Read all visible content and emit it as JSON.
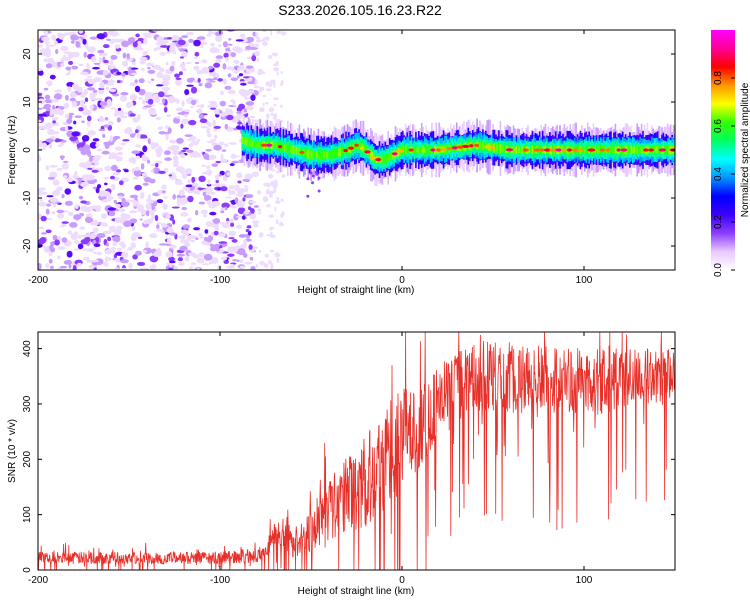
{
  "figure_title": "S233.2026.105.16.23.R22",
  "chart_data": [
    {
      "type": "heatmap",
      "title": "",
      "xlabel": "Height of straight line (km)",
      "ylabel": "Frequency (Hz)",
      "xlim": [
        -200,
        150
      ],
      "ylim": [
        -25,
        25
      ],
      "x_ticks": [
        -200,
        -100,
        0,
        100
      ],
      "y_ticks": [
        -20,
        -10,
        0,
        10,
        20
      ],
      "colorbar": {
        "label": "Normalized spectral amplitude",
        "range": [
          0,
          1
        ],
        "ticks": [
          0.0,
          0.2,
          0.4,
          0.6,
          0.8
        ],
        "colors": [
          "#ffffff",
          "#e8c8ff",
          "#8c3cff",
          "#3c00ff",
          "#0000ff",
          "#0096ff",
          "#00ffff",
          "#00ff64",
          "#32ff00",
          "#ffff00",
          "#ff9600",
          "#ff0000",
          "#ff0096",
          "#ff00ff"
        ]
      },
      "regions": [
        {
          "name": "noise",
          "x_range": [
            -200,
            -80
          ],
          "freq_range": [
            -25,
            25
          ],
          "amplitude": [
            0.0,
            0.05
          ]
        },
        {
          "name": "sparse-noise",
          "x_range": [
            -80,
            -65
          ],
          "freq_range": [
            -25,
            25
          ],
          "amplitude": [
            0.0,
            0.02
          ]
        },
        {
          "name": "carrier",
          "x_range": [
            -88,
            150
          ],
          "amplitude": [
            0.2,
            1.0
          ]
        }
      ],
      "carrier_freq_track": [
        {
          "x": -88,
          "f": 2
        },
        {
          "x": -80,
          "f": 1
        },
        {
          "x": -70,
          "f": 1
        },
        {
          "x": -60,
          "f": 0
        },
        {
          "x": -50,
          "f": -1
        },
        {
          "x": -40,
          "f": -1
        },
        {
          "x": -30,
          "f": 0
        },
        {
          "x": -25,
          "f": 1
        },
        {
          "x": -20,
          "f": 0
        },
        {
          "x": -15,
          "f": -2
        },
        {
          "x": -10,
          "f": -2
        },
        {
          "x": -5,
          "f": -1
        },
        {
          "x": 0,
          "f": 0
        },
        {
          "x": 20,
          "f": 0
        },
        {
          "x": 40,
          "f": 1
        },
        {
          "x": 60,
          "f": 0
        },
        {
          "x": 80,
          "f": 0
        },
        {
          "x": 100,
          "f": 0
        },
        {
          "x": 120,
          "f": 0
        },
        {
          "x": 150,
          "f": 0
        }
      ],
      "carrier_halfwidth_hz": 2
    },
    {
      "type": "line",
      "title": "",
      "xlabel": "Height of straight line (km)",
      "ylabel": "SNR (10 * v/v)",
      "xlim": [
        -200,
        150
      ],
      "ylim": [
        0,
        430
      ],
      "x_ticks": [
        -200,
        -100,
        0,
        100
      ],
      "y_ticks": [
        0,
        100,
        200,
        300,
        400
      ],
      "series": [
        {
          "name": "SNR",
          "color": "#e8302a",
          "x": [
            -200,
            -180,
            -160,
            -140,
            -120,
            -100,
            -80,
            -75,
            -70,
            -65,
            -60,
            -55,
            -50,
            -45,
            -40,
            -35,
            -30,
            -25,
            -20,
            -15,
            -10,
            -5,
            0,
            5,
            10,
            15,
            20,
            25,
            30,
            35,
            40,
            45,
            50,
            60,
            70,
            80,
            90,
            100,
            110,
            120,
            130,
            140,
            150
          ],
          "values": [
            22,
            22,
            22,
            22,
            22,
            22,
            25,
            35,
            60,
            70,
            50,
            55,
            75,
            90,
            110,
            120,
            135,
            150,
            165,
            185,
            200,
            215,
            230,
            250,
            265,
            280,
            300,
            320,
            330,
            340,
            345,
            350,
            350,
            345,
            345,
            345,
            345,
            340,
            340,
            345,
            350,
            350,
            355
          ],
          "noise_amplitude": [
            14,
            14,
            14,
            14,
            14,
            14,
            16,
            20,
            30,
            35,
            35,
            40,
            50,
            60,
            70,
            80,
            90,
            100,
            110,
            120,
            120,
            120,
            120,
            110,
            100,
            90,
            80,
            80,
            80,
            80,
            80,
            80,
            80,
            80,
            80,
            80,
            75,
            75,
            75,
            70,
            65,
            60,
            55
          ]
        }
      ]
    }
  ]
}
